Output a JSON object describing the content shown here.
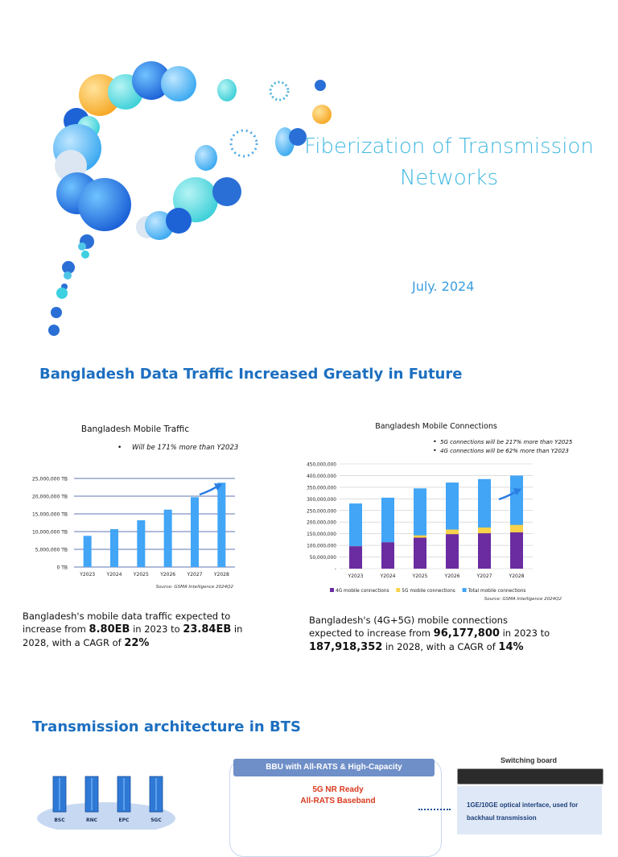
{
  "title_slide": {
    "title_line1": "Fiberization of Transmission",
    "title_line2": "Networks",
    "date": "July. 2024"
  },
  "traffic_slide": {
    "heading": "Bangladesh Data Traffic Increased Greatly in Future",
    "left_chart_notes": [
      "Will be 171% more than Y2023"
    ],
    "right_chart_notes": [
      "5G connections will be 217% more than Y2025",
      "4G connections will be 62% more than Y2023"
    ],
    "left_caption": {
      "t1": "Bangladesh's mobile data traffic expected to increase from ",
      "v1": "8.80EB",
      "t2": " in 2023 to ",
      "v2": "23.84EB",
      "t3": " in 2028, with a CAGR of ",
      "v3": "22%"
    },
    "right_caption": {
      "t1": "Bangladesh's (4G+5G) mobile connections expected to increase  from ",
      "v1": "96,177,800",
      "t2": " in 2023 to ",
      "v2": "187,918,352",
      "t3": " in 2028, with a CAGR of ",
      "v3": "14%"
    }
  },
  "arch_slide": {
    "heading": "Transmission architecture in BTS",
    "core_nodes": [
      "BSC",
      "RNC",
      "EPC",
      "5GC"
    ],
    "bbu_banner": "BBU with All-RATS & High-Capacity",
    "bbu_line1": "5G NR Ready",
    "bbu_line2": "All-RATS Baseband",
    "switch_title": "Switching board",
    "switch_info": "1GE/10GE optical interface, used for backhaul transmission"
  },
  "colors": {
    "accent": "#1c6fc0",
    "bar_blue": "#42a5f5",
    "series_4g": "#6a2ca0",
    "series_5g": "#f7d24a",
    "title": "#3fb8e0"
  },
  "chart_data": [
    {
      "type": "bar",
      "title": "Bangladesh Mobile Traffic",
      "categories": [
        "Y2023",
        "Y2024",
        "Y2025",
        "Y2026",
        "Y2027",
        "Y2028"
      ],
      "values": [
        8800000,
        10700000,
        13200000,
        16200000,
        19700000,
        23800000
      ],
      "ylim": [
        0,
        25000000
      ],
      "yticks": [
        "0 TB",
        "5,000,000 TB",
        "10,000,000 TB",
        "15,000,000 TB",
        "20,000,000 TB",
        "25,000,000 TB"
      ],
      "source": "Source: GSMA Intelligence 2024Q2",
      "xlabel": "",
      "ylabel": ""
    },
    {
      "type": "bar",
      "title": "Bangladesh Mobile Connections",
      "categories": [
        "Y2023",
        "Y2024",
        "Y2025",
        "Y2026",
        "Y2027",
        "Y2028"
      ],
      "series": [
        {
          "name": "4G mobile connections",
          "values": [
            96177800,
            113000000,
            133000000,
            148000000,
            152000000,
            156000000
          ]
        },
        {
          "name": "5G mobile connections",
          "values": [
            0,
            0,
            10000000,
            20000000,
            25000000,
            32000000
          ]
        },
        {
          "name": "Total mobile connections",
          "values": [
            280000000,
            305000000,
            345000000,
            370000000,
            385000000,
            400000000
          ]
        }
      ],
      "ylim": [
        0,
        450000000
      ],
      "yticks": [
        "-",
        "50,000,000",
        "100,000,000",
        "150,000,000",
        "200,000,000",
        "250,000,000",
        "300,000,000",
        "350,000,000",
        "400,000,000",
        "450,000,000"
      ],
      "source": "Source: GSMA Intelligence 2024Q2",
      "xlabel": "",
      "ylabel": ""
    }
  ]
}
